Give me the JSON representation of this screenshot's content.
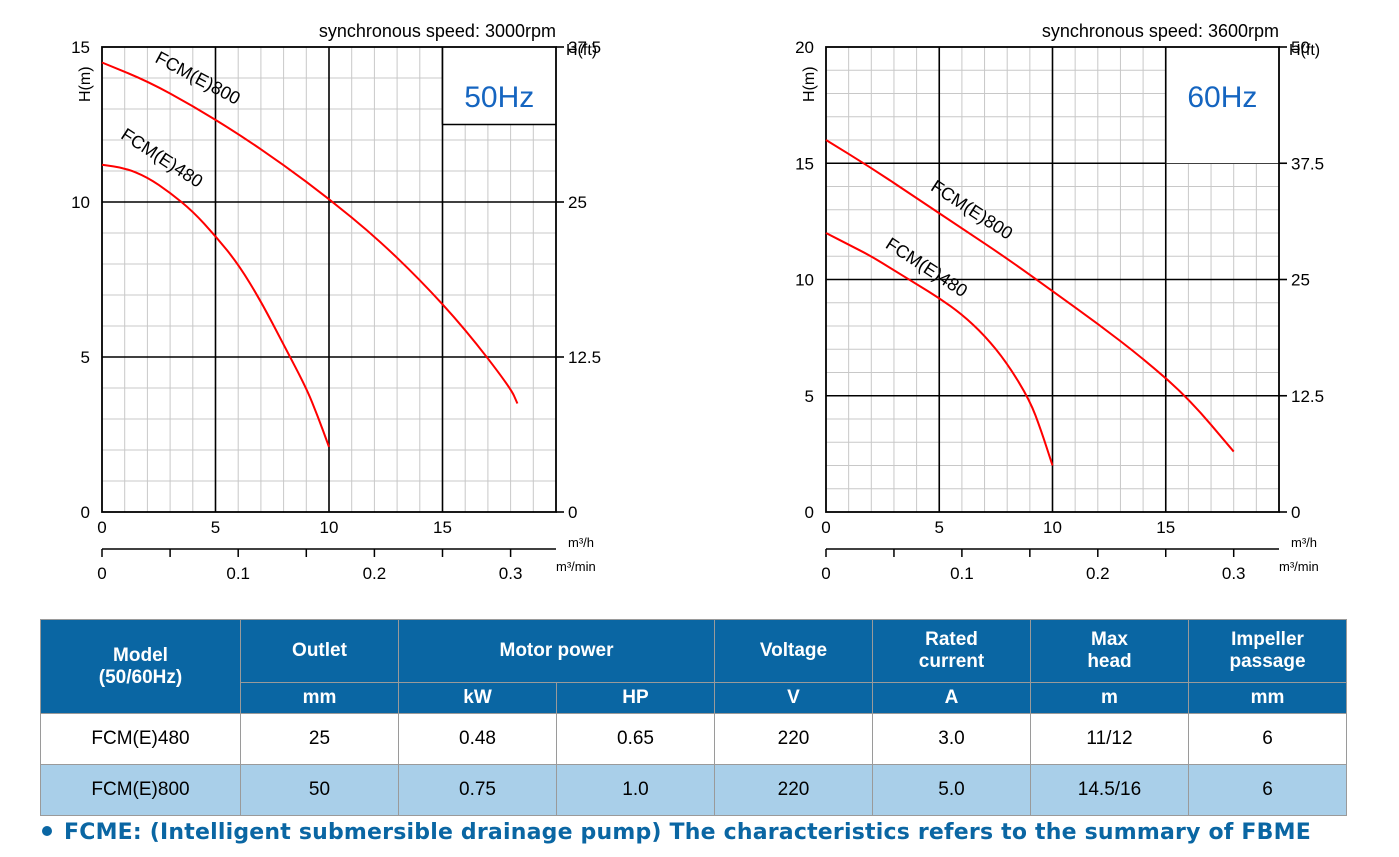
{
  "chart_data": [
    {
      "type": "line",
      "speed_label": "synchronous speed: 3000rpm",
      "freq_label": "50Hz",
      "ylabel_left": "H(m)",
      "ylabel_right": "H(ft)",
      "x_unit": "m³/h",
      "x2_unit": "m³/min",
      "xlim": [
        0,
        20
      ],
      "ylim": [
        0,
        15
      ],
      "x_ticks": [
        "0",
        "5",
        "10",
        "15"
      ],
      "y_ticks": [
        "0",
        "5",
        "10",
        "15"
      ],
      "ft_ticks": [
        "0",
        "12.5",
        "25",
        "37.5"
      ],
      "min_ticks": [
        "0",
        "0.1",
        "0.2",
        "0.3"
      ],
      "series": [
        {
          "name": "FCM(E)800",
          "x": [
            0,
            2,
            4,
            6,
            8,
            10,
            12,
            14,
            16,
            18,
            18.3
          ],
          "y": [
            14.5,
            13.9,
            13.1,
            12.2,
            11.2,
            10.1,
            8.9,
            7.5,
            5.9,
            4.0,
            3.5
          ]
        },
        {
          "name": "FCM(E)480",
          "x": [
            0,
            1,
            2,
            3,
            4,
            5,
            6,
            7,
            8,
            9,
            9.5,
            10
          ],
          "y": [
            11.2,
            11.1,
            10.8,
            10.3,
            9.7,
            8.9,
            8.0,
            6.8,
            5.4,
            4.0,
            3.1,
            2.1
          ]
        }
      ]
    },
    {
      "type": "line",
      "speed_label": "synchronous speed: 3600rpm",
      "freq_label": "60Hz",
      "ylabel_left": "H(m)",
      "ylabel_right": "H(ft)",
      "x_unit": "m³/h",
      "x2_unit": "m³/min",
      "xlim": [
        0,
        20
      ],
      "ylim": [
        0,
        20
      ],
      "x_ticks": [
        "0",
        "5",
        "10",
        "15"
      ],
      "y_ticks": [
        "0",
        "5",
        "10",
        "15",
        "20"
      ],
      "ft_ticks": [
        "0",
        "12.5",
        "25",
        "37.5",
        "50"
      ],
      "min_ticks": [
        "0",
        "0.1",
        "0.2",
        "0.3"
      ],
      "series": [
        {
          "name": "FCM(E)800",
          "x": [
            0,
            2,
            4,
            6,
            8,
            10,
            12,
            14,
            16,
            18
          ],
          "y": [
            16,
            14.8,
            13.5,
            12.2,
            10.9,
            9.5,
            8.1,
            6.6,
            4.9,
            2.6
          ]
        },
        {
          "name": "FCM(E)480",
          "x": [
            0,
            1,
            2,
            3,
            4,
            5,
            6,
            7,
            8,
            9,
            9.5,
            10
          ],
          "y": [
            12.0,
            11.5,
            11.0,
            10.4,
            9.8,
            9.2,
            8.5,
            7.6,
            6.4,
            4.8,
            3.5,
            2.0
          ]
        }
      ]
    }
  ],
  "table": {
    "headers": {
      "model": "Model\n(50/60Hz)",
      "outlet": "Outlet",
      "motor_power": "Motor power",
      "voltage": "Voltage",
      "rated_current": "Rated\ncurrent",
      "max_head": "Max\nhead",
      "impeller_passage": "Impeller\npassage"
    },
    "units": [
      "mm",
      "kW",
      "HP",
      "V",
      "A",
      "m",
      "mm"
    ],
    "rows": [
      [
        "FCM(E)480",
        "25",
        "0.48",
        "0.65",
        "220",
        "3.0",
        "11/12",
        "6"
      ],
      [
        "FCM(E)800",
        "50",
        "0.75",
        "1.0",
        "220",
        "5.0",
        "14.5/16",
        "6"
      ]
    ]
  },
  "footnote": "FCME: (Intelligent submersible drainage pump) The characteristics refers to the summary of FBME",
  "colors": {
    "curve": "#ff0000",
    "accent": "#0a66a3",
    "row_alt": "#a9cfe9",
    "freq": "#1565c0"
  }
}
